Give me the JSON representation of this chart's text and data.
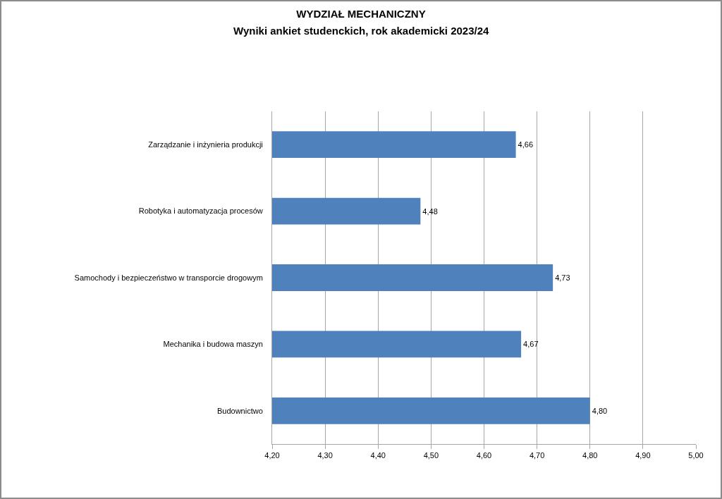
{
  "chart_data": {
    "type": "bar",
    "orientation": "horizontal",
    "title": "WYDZIAŁ MECHANICZNY",
    "subtitle": "Wyniki ankiet studenckich, rok akademicki 2023/24",
    "categories": [
      "Zarządzanie i inżynieria produkcji",
      "Robotyka i automatyzacja procesów",
      "Samochody i bezpieczeństwo w transporcie drogowym",
      "Mechanika i budowa maszyn",
      "Budownictwo"
    ],
    "values": [
      4.66,
      4.48,
      4.73,
      4.67,
      4.8
    ],
    "value_labels": [
      "4,66",
      "4,48",
      "4,73",
      "4,67",
      "4,80"
    ],
    "color": "#4f81bd",
    "xlim": [
      4.2,
      5.0
    ],
    "xticks": [
      {
        "value": 4.2,
        "label": "4,20"
      },
      {
        "value": 4.3,
        "label": "4,30"
      },
      {
        "value": 4.4,
        "label": "4,40"
      },
      {
        "value": 4.5,
        "label": "4,50"
      },
      {
        "value": 4.6,
        "label": "4,60"
      },
      {
        "value": 4.7,
        "label": "4,70"
      },
      {
        "value": 4.8,
        "label": "4,80"
      },
      {
        "value": 4.9,
        "label": "4,90"
      },
      {
        "value": 5.0,
        "label": "5,00"
      }
    ],
    "grid": "x"
  }
}
